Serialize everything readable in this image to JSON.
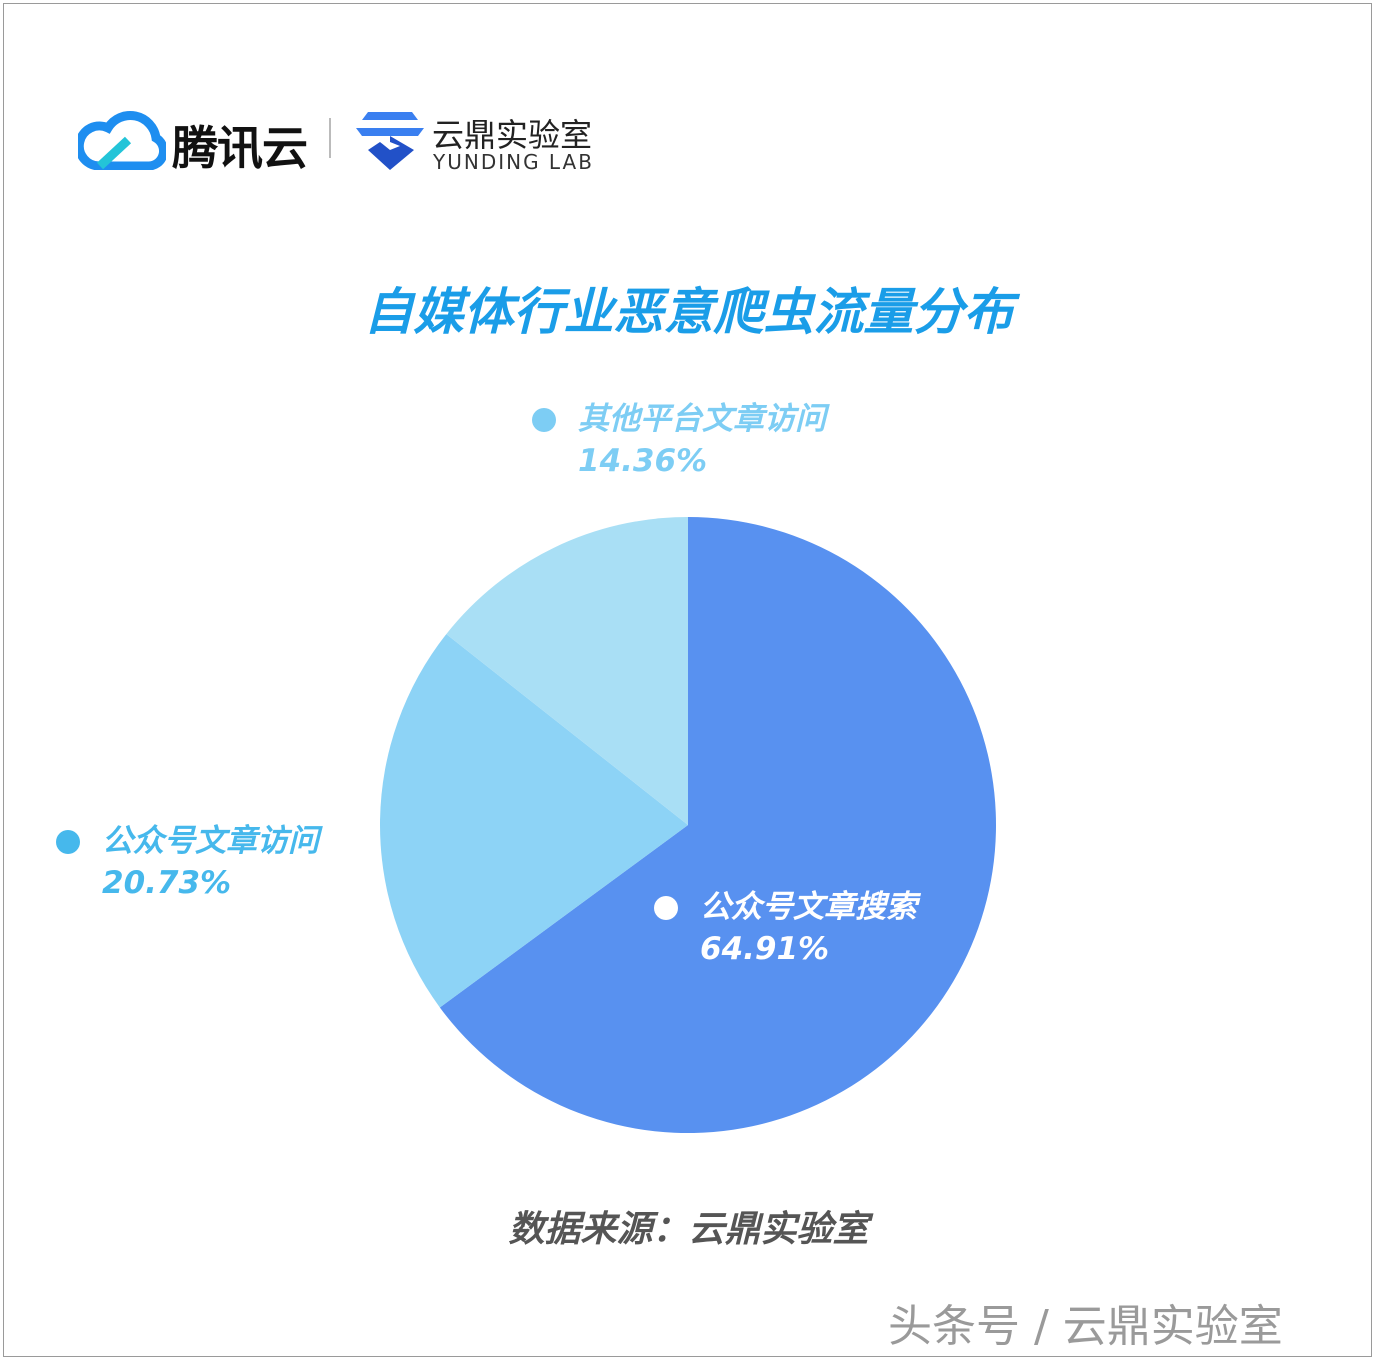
{
  "header": {
    "tencent_logo_text": "腾讯云",
    "yunding_logo_cn": "云鼎实验室",
    "yunding_logo_en": "YUNDING LAB"
  },
  "chart_data": {
    "type": "pie",
    "title": "自媒体行业恶意爬虫流量分布",
    "slices": [
      {
        "label": "公众号文章搜索",
        "value": 64.91,
        "display": "64.91%",
        "color": "#5891f0"
      },
      {
        "label": "公众号文章访问",
        "value": 20.73,
        "display": "20.73%",
        "color": "#8dd3f6"
      },
      {
        "label": "其他平台文章访问",
        "value": 14.36,
        "display": "14.36%",
        "color": "#a9dff5"
      }
    ],
    "start": "top",
    "direction": "clockwise",
    "legend_dot_colors": [
      "#ffffff",
      "#46b8ec",
      "#7dcdf4"
    ]
  },
  "source": "数据来源：云鼎实验室",
  "watermark": "头条号 / 云鼎实验室"
}
